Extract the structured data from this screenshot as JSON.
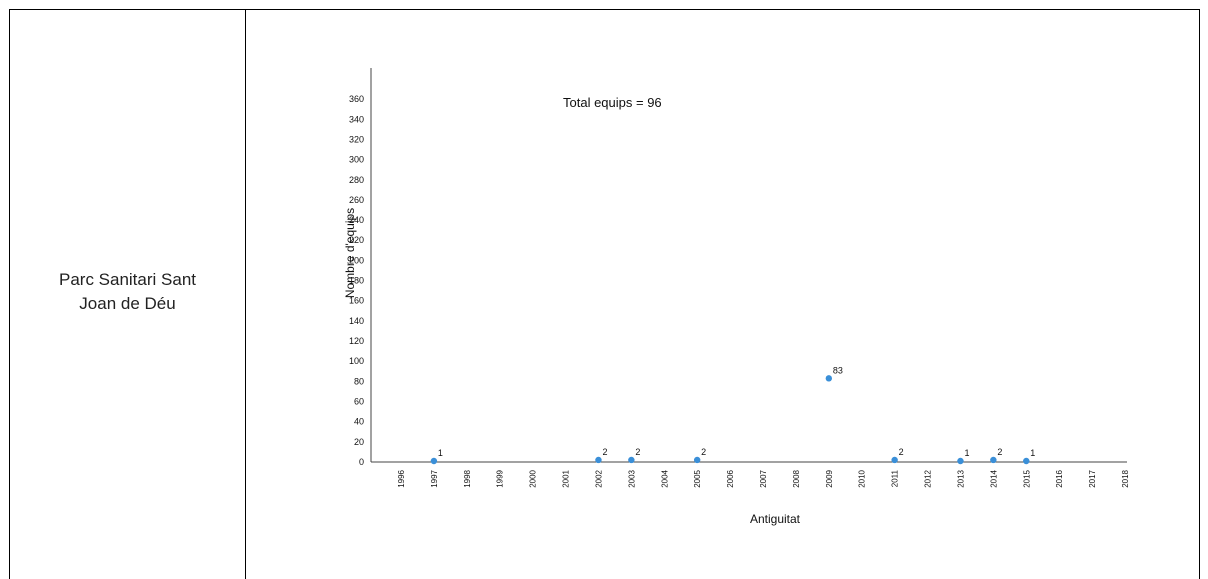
{
  "row": {
    "label_lines": [
      "Parc Sanitari Sant",
      "Joan de Déu"
    ]
  },
  "chart_data": {
    "type": "scatter",
    "title": "",
    "annotation": "Total equips = 96",
    "xlabel": "Antiguitat",
    "ylabel": "Nombre d'equips",
    "xlim": [
      1996,
      2018
    ],
    "ylim": [
      0,
      370
    ],
    "x_ticks": [
      1996,
      1997,
      1998,
      1999,
      2000,
      2001,
      2002,
      2003,
      2004,
      2005,
      2006,
      2007,
      2008,
      2009,
      2010,
      2011,
      2012,
      2013,
      2014,
      2015,
      2016,
      2017,
      2018
    ],
    "y_ticks": [
      0,
      20,
      40,
      60,
      80,
      100,
      120,
      140,
      160,
      180,
      200,
      220,
      240,
      260,
      280,
      300,
      320,
      340,
      360
    ],
    "grid": false,
    "legend": "none",
    "marker_color": "#3a8fd8",
    "points": [
      {
        "x": 1997,
        "y": 1,
        "label": "1"
      },
      {
        "x": 2002,
        "y": 2,
        "label": "2"
      },
      {
        "x": 2003,
        "y": 2,
        "label": "2"
      },
      {
        "x": 2005,
        "y": 2,
        "label": "2"
      },
      {
        "x": 2009,
        "y": 83,
        "label": "83"
      },
      {
        "x": 2011,
        "y": 2,
        "label": "2"
      },
      {
        "x": 2013,
        "y": 1,
        "label": "1"
      },
      {
        "x": 2014,
        "y": 2,
        "label": "2"
      },
      {
        "x": 2015,
        "y": 1,
        "label": "1"
      }
    ]
  }
}
